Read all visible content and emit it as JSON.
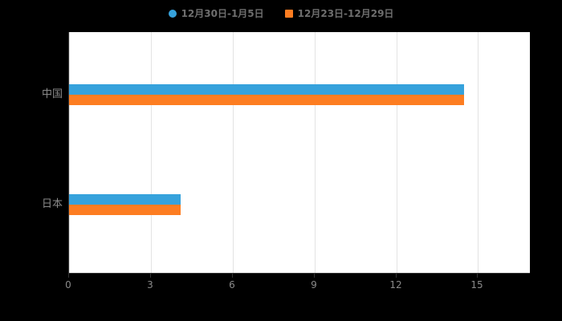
{
  "legend": {
    "items": [
      {
        "label": "12月30日-1月5日",
        "color": "#36a2dc",
        "shape": "circle"
      },
      {
        "label": "12月23日-12月29日",
        "color": "#fd7d21",
        "shape": "square"
      }
    ]
  },
  "chart_data": {
    "type": "bar",
    "orientation": "horizontal",
    "title": "",
    "xlabel": "",
    "ylabel": "",
    "categories": [
      "中国",
      "日本"
    ],
    "series": [
      {
        "name": "12月30日-1月5日",
        "color": "#36a2dc",
        "values": [
          14.5,
          4.1
        ]
      },
      {
        "name": "12月23日-12月29日",
        "color": "#fd7d21",
        "values": [
          14.5,
          4.1
        ]
      }
    ],
    "xticks": [
      0,
      3,
      6,
      9,
      12,
      15
    ],
    "xlim": [
      0,
      16.9
    ],
    "grid": true,
    "legend_position": "top",
    "background": "#000000",
    "plot_background": "#ffffff"
  }
}
